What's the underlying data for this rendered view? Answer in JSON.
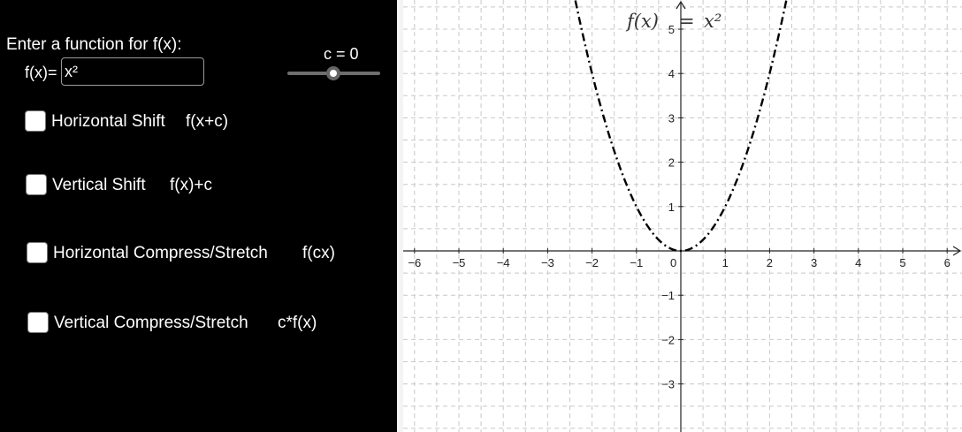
{
  "panel": {
    "prompt_label": "Enter a function for f(x):",
    "fx_prefix": "f(x)=",
    "fx_value": "x²",
    "slider_label": "c = 0",
    "slider_value": 0,
    "options": [
      {
        "label": "Horizontal Shift",
        "formula": "f(x+c)",
        "checked": false
      },
      {
        "label": "Vertical Shift",
        "formula": "f(x)+c",
        "checked": false
      },
      {
        "label": "Horizontal Compress/Stretch",
        "formula": "f(cx)",
        "checked": false
      },
      {
        "label": "Vertical Compress/Stretch",
        "formula": "c*f(x)",
        "checked": false
      }
    ]
  },
  "graph": {
    "curve_label_lhs": "f(x)",
    "curve_label_eq": "=",
    "curve_label_rhs": "x²",
    "x_ticks": [
      "−6",
      "−5",
      "−4",
      "−3",
      "−2",
      "−1",
      "0",
      "1",
      "2",
      "3",
      "4",
      "5",
      "6"
    ],
    "y_ticks": [
      "5",
      "4",
      "3",
      "2",
      "1",
      "−1",
      "−2",
      "−3"
    ]
  },
  "chart_data": {
    "type": "line",
    "function": "x^2",
    "series": [
      {
        "name": "f(x)",
        "x": [
          -2.3,
          -2,
          -1.5,
          -1,
          -0.5,
          0,
          0.5,
          1,
          1.5,
          2,
          2.3
        ],
        "y": [
          5.29,
          4,
          2.25,
          1,
          0.25,
          0,
          0.25,
          1,
          2.25,
          4,
          5.29
        ]
      }
    ],
    "xlim": [
      -6.2,
      6.3
    ],
    "ylim": [
      -3.9,
      5.7
    ],
    "grid": true,
    "line_style": "dash-dot",
    "color": "#000000"
  }
}
